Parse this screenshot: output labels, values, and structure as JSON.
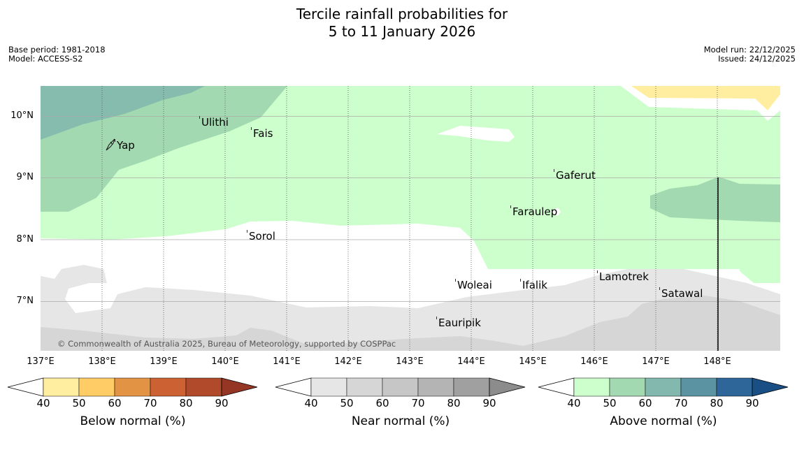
{
  "title": {
    "line1": "Tercile rainfall probabilities for",
    "line2": "5 to 11 January 2026"
  },
  "meta_left": {
    "base_period": "Base period: 1981-2018",
    "model": "Model: ACCESS-S2"
  },
  "meta_right": {
    "model_run": "Model run: 22/12/2025",
    "issued": "Issued: 24/12/2025"
  },
  "map": {
    "lat_labels": [
      "10°N",
      "9°N",
      "8°N",
      "7°N"
    ],
    "lon_labels": [
      "137°E",
      "138°E",
      "139°E",
      "140°E",
      "141°E",
      "142°E",
      "143°E",
      "144°E",
      "145°E",
      "146°E",
      "147°E",
      "148°E"
    ],
    "places": [
      "Ulithi",
      "Fais",
      "Yap",
      "Gaferut",
      "Faraulep",
      "Sorol",
      "Lamotrek",
      "Woleai",
      "Ifalik",
      "Satawal",
      "Eauripik"
    ],
    "copyright": "© Commonwealth of Australia 2025, Bureau of Meteorology, supported by COSPPac"
  },
  "legend": {
    "ticks": [
      "40",
      "50",
      "60",
      "70",
      "80",
      "90"
    ],
    "below": {
      "label": "Below normal (%)",
      "colors": [
        "#ffeea0",
        "#ffcc66",
        "#e29444",
        "#cc6133",
        "#b04a2a",
        "#953624"
      ]
    },
    "near": {
      "label": "Near normal (%)",
      "colors": [
        "#e6e6e6",
        "#d6d6d6",
        "#c6c6c6",
        "#b4b4b4",
        "#a0a0a0",
        "#8c8c8c"
      ]
    },
    "above": {
      "label": "Above normal (%)",
      "colors": [
        "#ccffcc",
        "#a3d9b1",
        "#82b8ad",
        "#5c93a3",
        "#2f6699",
        "#1a4f85"
      ]
    }
  }
}
